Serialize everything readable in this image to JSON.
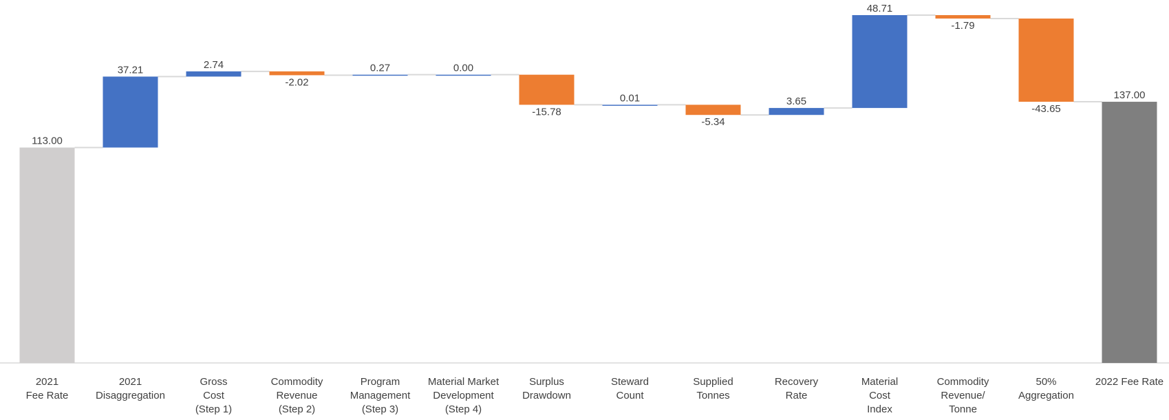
{
  "chart_data": {
    "type": "waterfall",
    "categories": [
      "2021\nFee Rate",
      "2021\nDisaggregation",
      "Gross\nCost\n(Step 1)",
      "Commodity\nRevenue\n(Step 2)",
      "Program\nManagement\n(Step 3)",
      "Material Market\nDevelopment\n(Step 4)",
      "Surplus\nDrawdown",
      "Steward\nCount",
      "Supplied\nTonnes",
      "Recovery\nRate",
      "Material\nCost\nIndex",
      "Commodity\nRevenue/\nTonne",
      "50%\nAggregation",
      "2022 Fee Rate"
    ],
    "values": [
      113.0,
      37.21,
      2.74,
      -2.02,
      0.27,
      0.0,
      -15.78,
      0.01,
      -5.34,
      3.65,
      48.71,
      -1.79,
      -43.65,
      137.0
    ],
    "value_labels": [
      "113.00",
      "37.21",
      "2.74",
      "-2.02",
      "0.27",
      "0.00",
      "-15.78",
      "0.01",
      "-5.34",
      "3.65",
      "48.71",
      "-1.79",
      "-43.65",
      "137.00"
    ],
    "increase_color": "#4472c4",
    "decrease_color": "#ed7d31",
    "total_colors": [
      "#d0cece",
      "#7f7f7f"
    ]
  }
}
